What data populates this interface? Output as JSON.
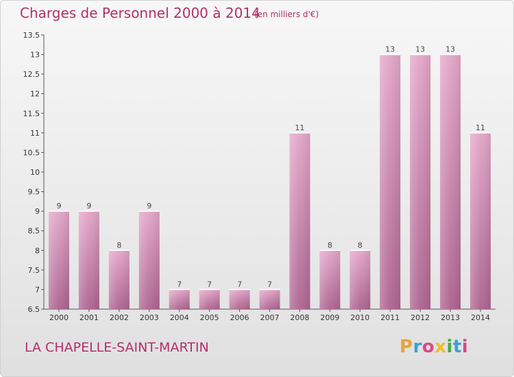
{
  "header": {
    "title": "Charges de Personnel 2000 à 2014",
    "subtitle": "(en milliers d'€)"
  },
  "footer": {
    "commune": "LA CHAPELLE-SAINT-MARTIN",
    "logo_text": "Proxiti",
    "logo_colors": [
      "#e8a33a",
      "#3aa0d8",
      "#d84a8a",
      "#f0c020",
      "#44aa44",
      "#3aa0d8",
      "#d84a8a"
    ]
  },
  "colors": {
    "accent": "#b0306a",
    "bar_light": "#e3a6c8",
    "bar_dark": "#ad6490"
  },
  "chart_data": {
    "type": "bar",
    "title": "Charges de Personnel 2000 à 2014",
    "subtitle": "(en milliers d'€)",
    "categories": [
      "2000",
      "2001",
      "2002",
      "2003",
      "2004",
      "2005",
      "2006",
      "2007",
      "2008",
      "2009",
      "2010",
      "2011",
      "2012",
      "2013",
      "2014"
    ],
    "values": [
      9,
      9,
      8,
      9,
      7,
      7,
      7,
      7,
      11,
      8,
      8,
      13,
      13,
      13,
      11
    ],
    "data_labels": [
      "9",
      "9",
      "8",
      "9",
      "7",
      "7",
      "7",
      "7",
      "11",
      "8",
      "8",
      "13",
      "13",
      "13",
      "11"
    ],
    "ylim": [
      6.5,
      13.5
    ],
    "yticks": [
      6.5,
      7,
      7.5,
      8,
      8.5,
      9,
      9.5,
      10,
      10.5,
      11,
      11.5,
      12,
      12.5,
      13,
      13.5
    ],
    "ytick_labels": [
      "6.5",
      "7",
      "7.5",
      "8",
      "8.5",
      "9",
      "9.5",
      "10",
      "10.5",
      "11",
      "11.5",
      "12",
      "12.5",
      "13",
      "13.5"
    ],
    "grid": false,
    "legend": "none"
  }
}
